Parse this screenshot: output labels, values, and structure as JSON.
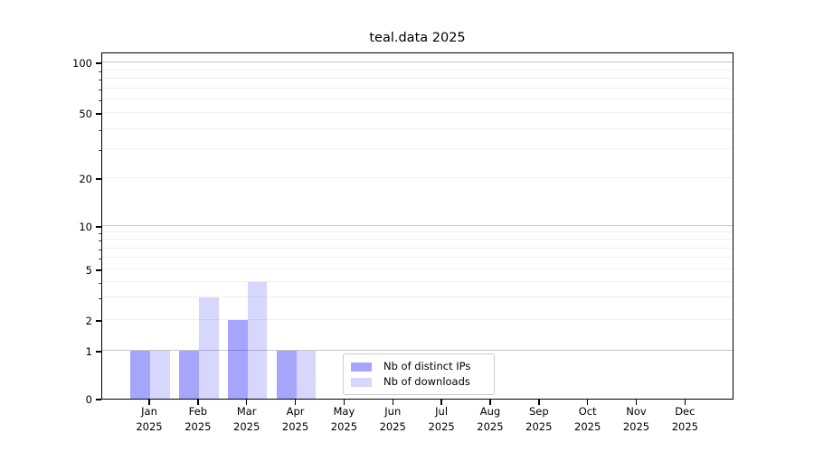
{
  "page": {
    "background": "#ffffff"
  },
  "chart_data": {
    "type": "bar",
    "title": "teal.data 2025",
    "x": {
      "months": [
        "Jan",
        "Feb",
        "Mar",
        "Apr",
        "May",
        "Jun",
        "Jul",
        "Aug",
        "Sep",
        "Oct",
        "Nov",
        "Dec"
      ],
      "year": "2025"
    },
    "series": [
      {
        "name": "Nb of distinct IPs",
        "color": "rgba(30,30,248,0.4)",
        "values": [
          1,
          1,
          2,
          1,
          0,
          0,
          0,
          0,
          0,
          0,
          0,
          0
        ]
      },
      {
        "name": "Nb of downloads",
        "color": "rgba(30,30,248,0.175)",
        "values": [
          1,
          3,
          4,
          1,
          0,
          0,
          0,
          0,
          0,
          0,
          0,
          0
        ]
      }
    ],
    "y_axis": {
      "ticks": [
        0,
        1,
        2,
        5,
        10,
        20,
        50,
        100
      ],
      "scale": "log-like",
      "ymin": 0
    },
    "grid": {
      "decade_lines": [
        1,
        10,
        100
      ],
      "minor_lines": [
        2,
        3,
        4,
        5,
        6,
        7,
        8,
        9,
        20,
        30,
        40,
        50,
        60,
        70,
        80,
        90
      ]
    },
    "legend_position": "lower center"
  },
  "colors": {
    "grid_major": "#c6c6c6",
    "grid_minor": "#efefef",
    "axis": "#000000",
    "text": "#000000",
    "legend_border": "#cccccc"
  }
}
